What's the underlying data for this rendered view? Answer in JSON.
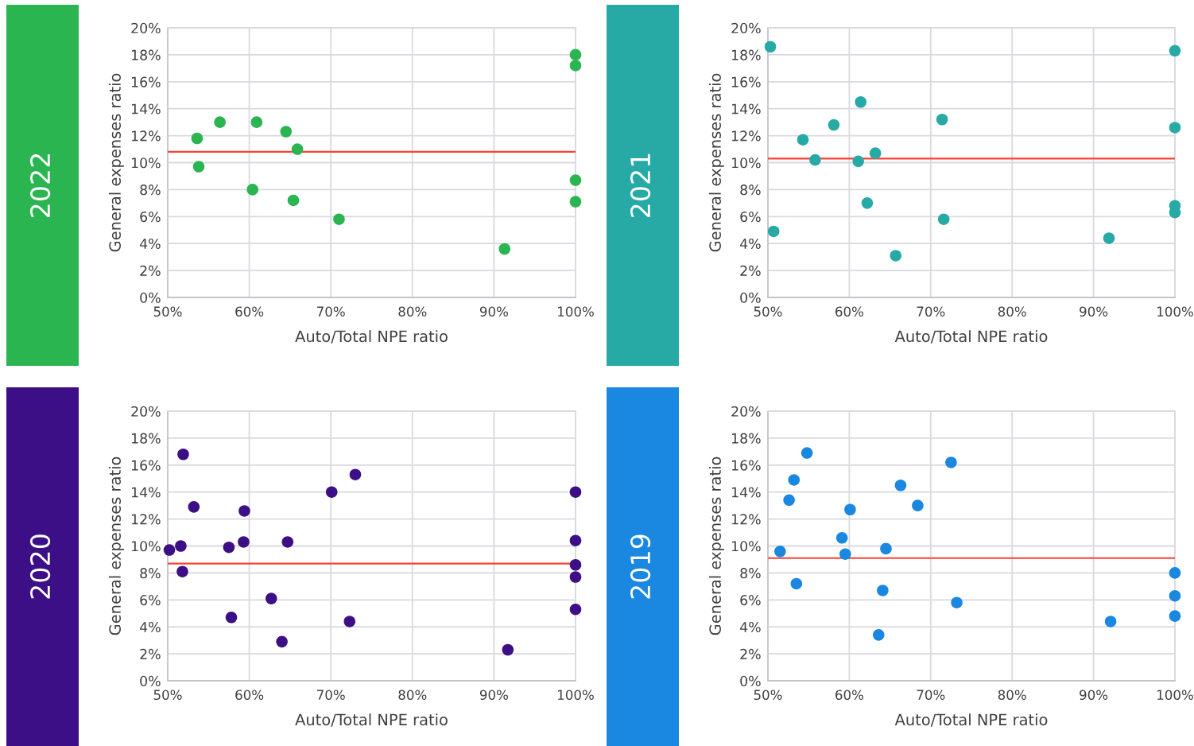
{
  "chart_data": [
    {
      "type": "scatter",
      "title": "2022",
      "xlabel": "Auto/Total NPE ratio",
      "ylabel": "General expenses ratio",
      "xlim": [
        50,
        100
      ],
      "ylim": [
        0,
        20
      ],
      "xticks": [
        {
          "value": 50,
          "label": "50%"
        },
        {
          "value": 60,
          "label": "60%"
        },
        {
          "value": 70,
          "label": "70%"
        },
        {
          "value": 80,
          "label": "80%"
        },
        {
          "value": 90,
          "label": "90%"
        },
        {
          "value": 100,
          "label": "100%"
        }
      ],
      "yticks": [
        {
          "value": 0,
          "label": "0%"
        },
        {
          "value": 2,
          "label": "2%"
        },
        {
          "value": 4,
          "label": "4%"
        },
        {
          "value": 6,
          "label": "6%"
        },
        {
          "value": 8,
          "label": "8%"
        },
        {
          "value": 10,
          "label": "10%"
        },
        {
          "value": 12,
          "label": "12%"
        },
        {
          "value": 14,
          "label": "14%"
        },
        {
          "value": 16,
          "label": "16%"
        },
        {
          "value": 18,
          "label": "18%"
        },
        {
          "value": 20,
          "label": "20%"
        }
      ],
      "grid": true,
      "marker": "circle",
      "series": [
        {
          "color": "#2bb551",
          "x": [
            53.6,
            53.8,
            56.4,
            60.9,
            60.4,
            64.5,
            65.9,
            65.4,
            71.0,
            91.3,
            100,
            100,
            100,
            100
          ],
          "values": [
            11.8,
            9.7,
            13.0,
            13.0,
            8.0,
            12.3,
            11.0,
            7.2,
            5.8,
            3.6,
            18.0,
            17.2,
            8.7,
            7.1
          ]
        }
      ],
      "ref_lines": [
        {
          "axis": "y",
          "value": 10.8,
          "color": "#ff4136"
        }
      ]
    },
    {
      "type": "scatter",
      "title": "2021",
      "xlabel": "Auto/Total NPE ratio",
      "ylabel": "General expenses ratio",
      "xlim": [
        50,
        100
      ],
      "ylim": [
        0,
        20
      ],
      "xticks": [
        {
          "value": 50,
          "label": "50%"
        },
        {
          "value": 60,
          "label": "60%"
        },
        {
          "value": 70,
          "label": "70%"
        },
        {
          "value": 80,
          "label": "80%"
        },
        {
          "value": 90,
          "label": "90%"
        },
        {
          "value": 100,
          "label": "100%"
        }
      ],
      "yticks": [
        {
          "value": 0,
          "label": "0%"
        },
        {
          "value": 2,
          "label": "2%"
        },
        {
          "value": 4,
          "label": "4%"
        },
        {
          "value": 6,
          "label": "6%"
        },
        {
          "value": 8,
          "label": "8%"
        },
        {
          "value": 10,
          "label": "10%"
        },
        {
          "value": 12,
          "label": "12%"
        },
        {
          "value": 14,
          "label": "14%"
        },
        {
          "value": 16,
          "label": "16%"
        },
        {
          "value": 18,
          "label": "18%"
        },
        {
          "value": 20,
          "label": "20%"
        }
      ],
      "grid": true,
      "marker": "circle",
      "series": [
        {
          "color": "#27aaa6",
          "x": [
            50.3,
            50.7,
            54.3,
            55.8,
            58.1,
            61.4,
            61.1,
            63.2,
            62.2,
            65.7,
            71.4,
            71.6,
            91.9,
            100,
            100,
            100,
            100
          ],
          "values": [
            18.6,
            4.9,
            11.7,
            10.2,
            12.8,
            14.5,
            10.1,
            10.7,
            7.0,
            3.1,
            13.2,
            5.8,
            4.4,
            18.3,
            12.6,
            6.8,
            6.3
          ]
        }
      ],
      "ref_lines": [
        {
          "axis": "y",
          "value": 10.3,
          "color": "#ff4136"
        }
      ]
    },
    {
      "type": "scatter",
      "title": "2020",
      "xlabel": "Auto/Total NPE ratio",
      "ylabel": "General expenses ratio",
      "xlim": [
        50,
        100
      ],
      "ylim": [
        0,
        20
      ],
      "xticks": [
        {
          "value": 50,
          "label": "50%"
        },
        {
          "value": 60,
          "label": "60%"
        },
        {
          "value": 70,
          "label": "70%"
        },
        {
          "value": 80,
          "label": "80%"
        },
        {
          "value": 90,
          "label": "90%"
        },
        {
          "value": 100,
          "label": "100%"
        }
      ],
      "yticks": [
        {
          "value": 0,
          "label": "0%"
        },
        {
          "value": 2,
          "label": "2%"
        },
        {
          "value": 4,
          "label": "4%"
        },
        {
          "value": 6,
          "label": "6%"
        },
        {
          "value": 8,
          "label": "8%"
        },
        {
          "value": 10,
          "label": "10%"
        },
        {
          "value": 12,
          "label": "12%"
        },
        {
          "value": 14,
          "label": "14%"
        },
        {
          "value": 16,
          "label": "16%"
        },
        {
          "value": 18,
          "label": "18%"
        },
        {
          "value": 20,
          "label": "20%"
        }
      ],
      "grid": true,
      "marker": "circle",
      "series": [
        {
          "color": "#3c0f87",
          "x": [
            50.2,
            51.6,
            51.8,
            51.9,
            53.2,
            57.5,
            57.8,
            59.4,
            59.3,
            62.7,
            64.0,
            64.7,
            70.1,
            73.0,
            72.3,
            91.7,
            100,
            100,
            100,
            100,
            100
          ],
          "values": [
            9.7,
            10.0,
            8.1,
            16.8,
            12.9,
            9.9,
            4.7,
            12.6,
            10.3,
            6.1,
            2.9,
            10.3,
            14.0,
            15.3,
            4.4,
            2.3,
            14.0,
            10.4,
            8.6,
            7.7,
            5.3
          ]
        }
      ],
      "ref_lines": [
        {
          "axis": "y",
          "value": 8.7,
          "color": "#ff4136"
        }
      ]
    },
    {
      "type": "scatter",
      "title": "2019",
      "xlabel": "Auto/Total NPE ratio",
      "ylabel": "General expenses ratio",
      "xlim": [
        50,
        100
      ],
      "ylim": [
        0,
        20
      ],
      "xticks": [
        {
          "value": 50,
          "label": "50%"
        },
        {
          "value": 60,
          "label": "60%"
        },
        {
          "value": 70,
          "label": "70%"
        },
        {
          "value": 80,
          "label": "80%"
        },
        {
          "value": 90,
          "label": "90%"
        },
        {
          "value": 100,
          "label": "100%"
        }
      ],
      "yticks": [
        {
          "value": 0,
          "label": "0%"
        },
        {
          "value": 2,
          "label": "2%"
        },
        {
          "value": 4,
          "label": "4%"
        },
        {
          "value": 6,
          "label": "6%"
        },
        {
          "value": 8,
          "label": "8%"
        },
        {
          "value": 10,
          "label": "10%"
        },
        {
          "value": 12,
          "label": "12%"
        },
        {
          "value": 14,
          "label": "14%"
        },
        {
          "value": 16,
          "label": "16%"
        },
        {
          "value": 18,
          "label": "18%"
        },
        {
          "value": 20,
          "label": "20%"
        }
      ],
      "grid": true,
      "marker": "circle",
      "series": [
        {
          "color": "#1a87e0",
          "x": [
            51.5,
            52.6,
            53.2,
            53.5,
            54.8,
            59.1,
            59.5,
            60.1,
            64.1,
            64.5,
            63.6,
            66.3,
            68.4,
            72.5,
            73.2,
            92.1,
            100,
            100,
            100
          ],
          "values": [
            9.6,
            13.4,
            14.9,
            7.2,
            16.9,
            10.6,
            9.4,
            12.7,
            6.7,
            9.8,
            3.4,
            14.5,
            13.0,
            16.2,
            5.8,
            4.4,
            8.0,
            6.3,
            4.8
          ]
        }
      ],
      "ref_lines": [
        {
          "axis": "y",
          "value": 9.1,
          "color": "#ff4136"
        }
      ]
    }
  ]
}
